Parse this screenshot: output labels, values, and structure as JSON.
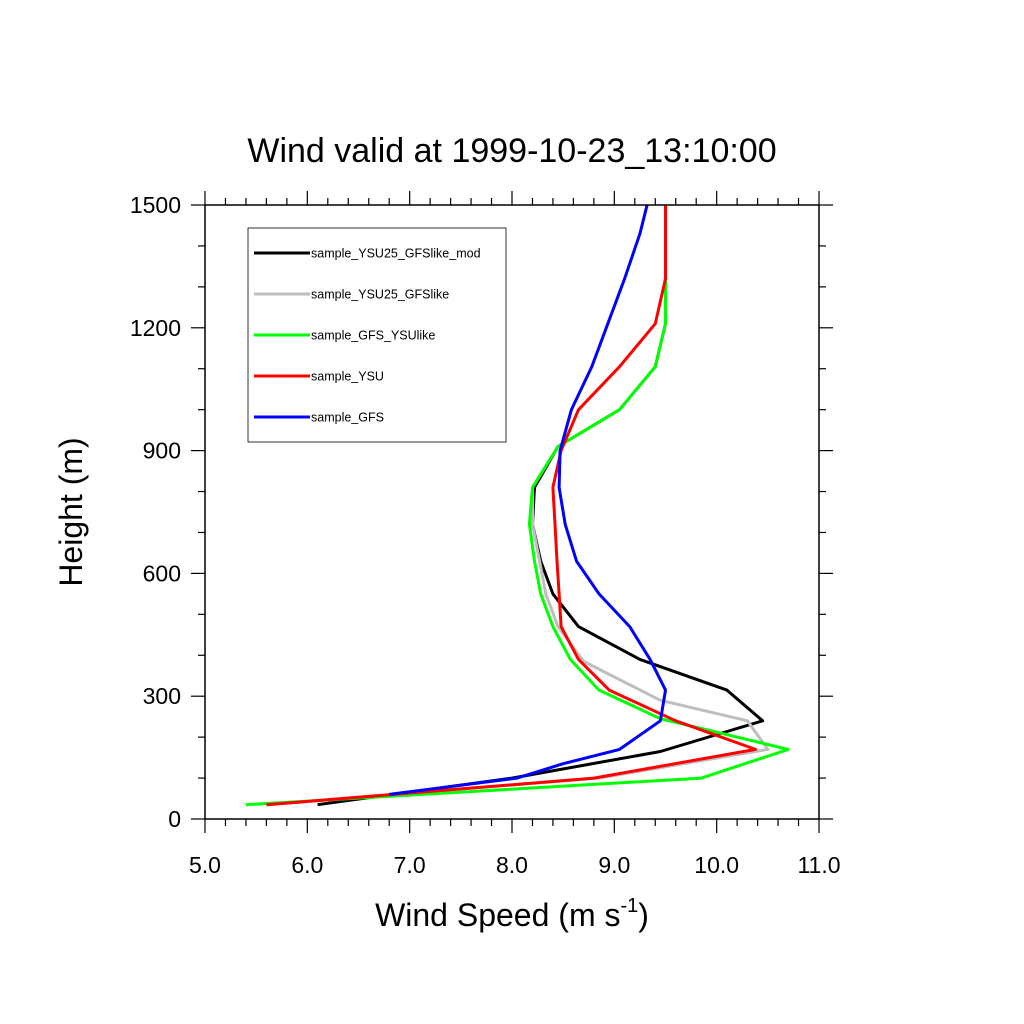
{
  "chart_data": {
    "type": "line",
    "title": "Wind valid at 1999-10-23_13:10:00",
    "xlabel": "Wind Speed (m s",
    "xlabel_sup": "-1",
    "xlabel_close": ")",
    "ylabel": "Height (m)",
    "xlim": [
      5.0,
      11.0
    ],
    "ylim": [
      0,
      1500
    ],
    "x_ticks": [
      5.0,
      6.0,
      7.0,
      8.0,
      9.0,
      10.0,
      11.0
    ],
    "x_tick_labels": [
      "5.0",
      "6.0",
      "7.0",
      "8.0",
      "9.0",
      "10.0",
      "11.0"
    ],
    "y_ticks": [
      0,
      300,
      600,
      900,
      1200,
      1500
    ],
    "y_tick_labels": [
      "0",
      "300",
      "600",
      "900",
      "1200",
      "1500"
    ],
    "legend_position": "top-left",
    "grid": false,
    "series": [
      {
        "name": "sample_YSU25_GFSlike_mod",
        "color": "#000000",
        "points": [
          [
            6.1,
            35
          ],
          [
            8.0,
            100
          ],
          [
            9.45,
            165
          ],
          [
            10.45,
            240
          ],
          [
            10.1,
            315
          ],
          [
            9.25,
            390
          ],
          [
            8.65,
            470
          ],
          [
            8.4,
            550
          ],
          [
            8.28,
            630
          ],
          [
            8.2,
            720
          ],
          [
            8.22,
            810
          ],
          [
            8.45,
            910
          ],
          [
            9.05,
            1000
          ],
          [
            9.4,
            1105
          ],
          [
            9.5,
            1210
          ],
          [
            9.5,
            1320
          ],
          [
            9.5,
            1500
          ]
        ]
      },
      {
        "name": "sample_YSU25_GFSlike",
        "color": "#bebebe",
        "points": [
          [
            5.6,
            35
          ],
          [
            8.85,
            100
          ],
          [
            10.5,
            170
          ],
          [
            10.3,
            240
          ],
          [
            9.45,
            290
          ],
          [
            8.7,
            385
          ],
          [
            8.45,
            470
          ],
          [
            8.33,
            550
          ],
          [
            8.27,
            630
          ],
          [
            8.2,
            720
          ],
          [
            8.2,
            810
          ],
          [
            8.45,
            910
          ],
          [
            9.05,
            1000
          ],
          [
            9.4,
            1105
          ],
          [
            9.5,
            1210
          ],
          [
            9.5,
            1320
          ],
          [
            9.5,
            1500
          ]
        ]
      },
      {
        "name": "sample_GFS_YSUlike",
        "color": "#00ff00",
        "points": [
          [
            5.4,
            35
          ],
          [
            9.85,
            100
          ],
          [
            10.7,
            170
          ],
          [
            9.45,
            245
          ],
          [
            8.85,
            315
          ],
          [
            8.57,
            390
          ],
          [
            8.4,
            470
          ],
          [
            8.28,
            550
          ],
          [
            8.22,
            630
          ],
          [
            8.17,
            720
          ],
          [
            8.2,
            810
          ],
          [
            8.45,
            910
          ],
          [
            9.05,
            1000
          ],
          [
            9.4,
            1105
          ],
          [
            9.5,
            1210
          ],
          [
            9.5,
            1320
          ],
          [
            9.5,
            1500
          ]
        ]
      },
      {
        "name": "sample_YSU",
        "color": "#ff0000",
        "points": [
          [
            5.6,
            35
          ],
          [
            8.8,
            100
          ],
          [
            10.38,
            170
          ],
          [
            9.6,
            240
          ],
          [
            8.95,
            315
          ],
          [
            8.65,
            390
          ],
          [
            8.48,
            470
          ],
          [
            8.46,
            550
          ],
          [
            8.44,
            630
          ],
          [
            8.42,
            720
          ],
          [
            8.4,
            810
          ],
          [
            8.48,
            900
          ],
          [
            8.65,
            1000
          ],
          [
            9.05,
            1105
          ],
          [
            9.4,
            1210
          ],
          [
            9.5,
            1320
          ],
          [
            9.5,
            1500
          ]
        ]
      },
      {
        "name": "sample_GFS",
        "color": "#0000ff",
        "points": [
          [
            6.8,
            60
          ],
          [
            8.05,
            100
          ],
          [
            8.5,
            135
          ],
          [
            9.05,
            170
          ],
          [
            9.45,
            240
          ],
          [
            9.5,
            315
          ],
          [
            9.35,
            390
          ],
          [
            9.15,
            470
          ],
          [
            8.85,
            550
          ],
          [
            8.63,
            630
          ],
          [
            8.52,
            720
          ],
          [
            8.46,
            810
          ],
          [
            8.47,
            900
          ],
          [
            8.58,
            1000
          ],
          [
            8.78,
            1105
          ],
          [
            9.1,
            1320
          ],
          [
            9.25,
            1430
          ],
          [
            9.32,
            1500
          ]
        ]
      }
    ]
  }
}
